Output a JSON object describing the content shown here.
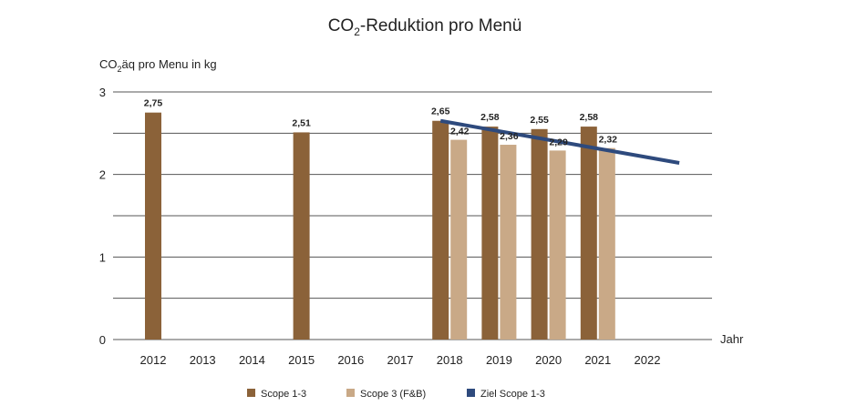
{
  "chart_data": {
    "type": "bar",
    "title_main": "CO",
    "title_sub": "2",
    "title_rest": "-Reduktion pro Menü",
    "ylabel_main": "CO",
    "ylabel_sub": "2",
    "ylabel_rest": "äq pro Menu in kg",
    "xlabel": "Jahr",
    "ylim": [
      0,
      3
    ],
    "yticks": [
      {
        "value": 0,
        "label": "0"
      },
      {
        "value": 1,
        "label": "1"
      },
      {
        "value": 2,
        "label": "2"
      },
      {
        "value": 3,
        "label": "3"
      }
    ],
    "gridlines": [
      0.5,
      1,
      1.5,
      2,
      2.5,
      3
    ],
    "categories": [
      "2012",
      "2013",
      "2014",
      "2015",
      "2016",
      "2017",
      "2018",
      "2019",
      "2020",
      "2021",
      "2022"
    ],
    "series": [
      {
        "name": "Scope 1-3",
        "color": "#8b6239",
        "values": [
          2.75,
          null,
          null,
          2.51,
          null,
          null,
          2.65,
          2.58,
          2.55,
          2.58,
          null
        ],
        "labels": [
          "2,75",
          "",
          "",
          "2,51",
          "",
          "",
          "2,65",
          "2,58",
          "2,55",
          "2,58",
          ""
        ]
      },
      {
        "name": "Scope 3 (F&B)",
        "color": "#c9a987",
        "values": [
          null,
          null,
          null,
          null,
          null,
          null,
          2.42,
          2.36,
          2.29,
          2.32,
          null
        ],
        "labels": [
          "",
          "",
          "",
          "",
          "",
          "",
          "2,42",
          "2,36",
          "2,29",
          "2,32",
          ""
        ]
      }
    ],
    "target_line": {
      "name": "Ziel Scope 1-3",
      "color": "#2e4a7d",
      "points": [
        {
          "x": "2018",
          "y": 2.65
        },
        {
          "x": "2022.5",
          "y": 2.14
        }
      ]
    },
    "legend_placement": "bottom-center"
  }
}
